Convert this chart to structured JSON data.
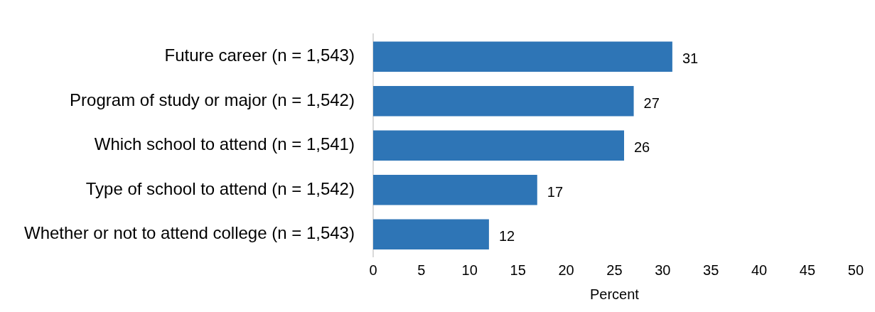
{
  "chart_data": {
    "type": "bar",
    "orientation": "horizontal",
    "xlabel": "Percent",
    "categories": [
      "Future career (n = 1,543)",
      "Program of study or major (n = 1,542)",
      "Which school to attend (n = 1,541)",
      "Type of school to attend (n = 1,542)",
      "Whether or not to attend college (n = 1,543)"
    ],
    "values": [
      31,
      27,
      26,
      17,
      12
    ],
    "color": "#2e75b6",
    "data_labels": true,
    "grid": false,
    "legend": false,
    "xlim": [
      0,
      50
    ],
    "xticks": [
      0,
      5,
      10,
      15,
      20,
      25,
      30,
      35,
      40,
      45,
      50
    ]
  }
}
